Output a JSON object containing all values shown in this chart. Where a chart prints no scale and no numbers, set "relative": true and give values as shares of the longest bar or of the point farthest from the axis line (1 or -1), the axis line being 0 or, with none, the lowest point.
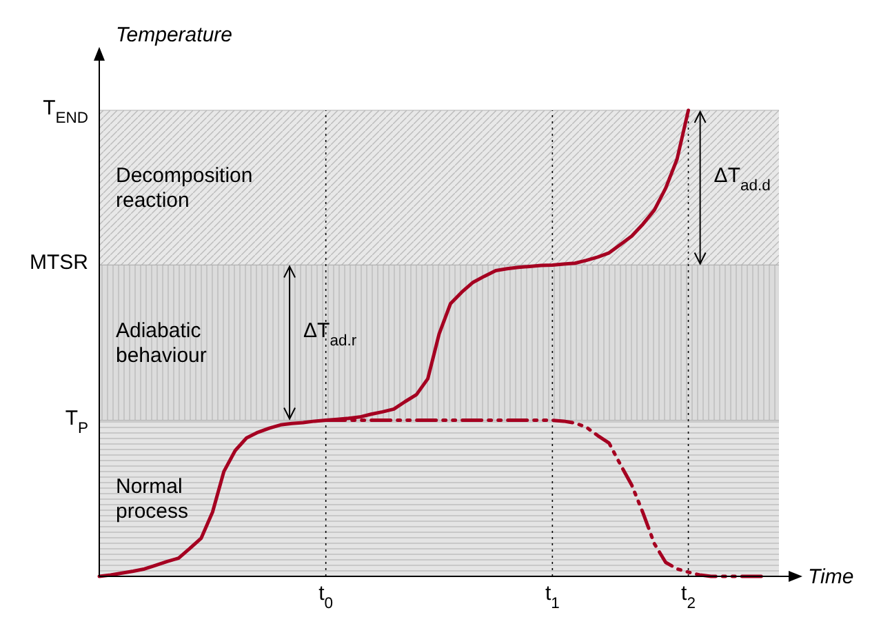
{
  "chart_data": {
    "type": "line",
    "relative": true,
    "xlabel": "Time",
    "ylabel": "Temperature",
    "grid": "x",
    "categories": [
      null,
      null,
      null,
      null,
      null,
      null,
      null,
      null,
      null,
      null,
      null,
      null,
      null,
      null,
      null,
      null,
      null,
      null,
      null,
      null,
      "t$_{0}$",
      null,
      null,
      null,
      null,
      null,
      null,
      null,
      null,
      null,
      null,
      null,
      null,
      null,
      null,
      null,
      null,
      null,
      null,
      null,
      "t$_{1}$",
      null,
      null,
      null,
      null,
      null,
      null,
      null,
      null,
      null,
      null,
      null,
      "t$_{2}$",
      null,
      null,
      null,
      null,
      null,
      null,
      null,
      null
    ],
    "series": [
      {
        "color": "#a50021",
        "line_style": "solid",
        "values": [
          0,
          0.003,
          0.007,
          0.011,
          0.016,
          0.024,
          0.032,
          0.039,
          0.06,
          0.082,
          0.138,
          0.225,
          0.27,
          0.297,
          0.309,
          0.318,
          0.325,
          0.328,
          0.33,
          0.333,
          0.335,
          0.337,
          0.339,
          0.342,
          0.348,
          0.353,
          0.359,
          0.375,
          0.39,
          0.424,
          0.52,
          0.585,
          0.61,
          0.631,
          0.644,
          0.656,
          0.66,
          0.663,
          0.665,
          0.667,
          0.668,
          0.67,
          0.672,
          0.678,
          0.685,
          0.694,
          0.712,
          0.73,
          0.756,
          0.786,
          0.833,
          0.895,
          1,
          null,
          null,
          null,
          null,
          null,
          null,
          null,
          null
        ]
      },
      {
        "color": "#a50021",
        "line_style": "dashdot",
        "values": [
          null,
          null,
          null,
          null,
          null,
          null,
          null,
          null,
          null,
          null,
          null,
          null,
          null,
          null,
          null,
          null,
          null,
          null,
          null,
          null,
          0.335,
          0.335,
          0.335,
          0.335,
          0.335,
          0.335,
          0.335,
          0.335,
          0.335,
          0.335,
          0.335,
          0.335,
          0.335,
          0.335,
          0.335,
          0.335,
          0.335,
          0.335,
          0.335,
          0.335,
          0.335,
          0.333,
          0.329,
          0.32,
          0.302,
          0.286,
          0.24,
          0.196,
          0.136,
          0.07,
          0.03,
          0.016,
          0.009,
          0.003,
          0,
          0,
          0,
          0,
          0,
          0,
          null
        ]
      }
    ],
    "bands": [
      {
        "axis": "y",
        "from": 0,
        "to": 0.335,
        "label": "Normal process",
        "color": "#e4e4e4"
      },
      {
        "axis": "y",
        "from": 0.335,
        "to": 0.668,
        "label": "Adiabatic behaviour",
        "color": "#dcdcdc"
      },
      {
        "axis": "y",
        "from": 0.668,
        "to": 1,
        "label": "Decomposition reaction",
        "color": "#e8e8e8"
      }
    ],
    "ref_lines": [
      {
        "axis": "y",
        "value": 0.335,
        "label": "T$_{P}$",
        "color": "#b0b0b0"
      },
      {
        "axis": "y",
        "value": 0.668,
        "label": "MTSR",
        "color": "#b0b0b0"
      },
      {
        "axis": "y",
        "value": 1,
        "label": "T$_{END}$",
        "color": "#b0b0b0"
      }
    ],
    "annotations": [
      "ΔT$_{ad.r}$",
      "ΔT$_{ad.d}$"
    ]
  }
}
